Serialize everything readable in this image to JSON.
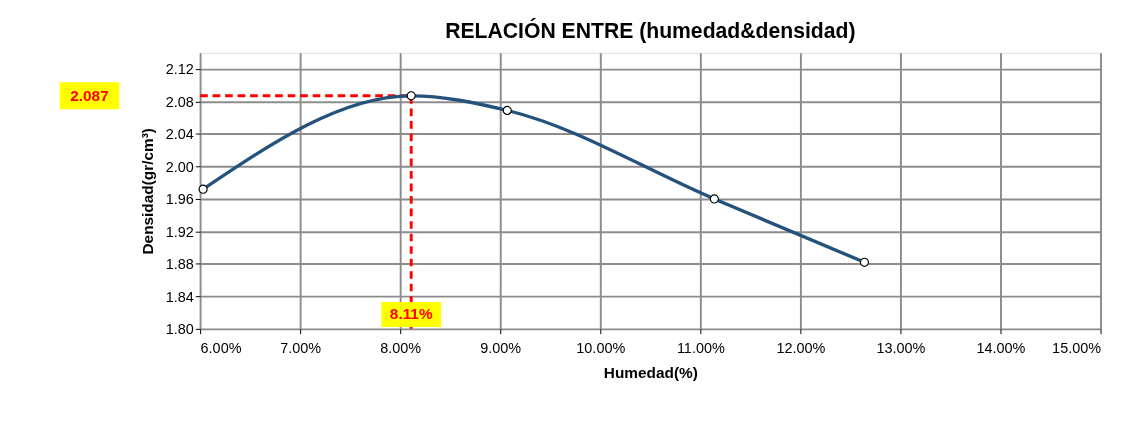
{
  "chart_data": {
    "type": "line",
    "title": "RELACIÓN ENTRE (humedad&densidad)",
    "xlabel": "Humedad(%)",
    "ylabel": "Densidad(gr/cm³)",
    "x": [
      6.03,
      8.11,
      9.07,
      11.14,
      12.64
    ],
    "series": [
      {
        "color": "#24527a",
        "values": [
          1.972,
          2.087,
          2.069,
          1.96,
          1.882
        ]
      }
    ],
    "marker": "circle",
    "line_style": "solid",
    "grid": true,
    "xlim": [
      6,
      15
    ],
    "xticks": [
      {
        "value": 6,
        "label": "6.00%"
      },
      {
        "value": 7,
        "label": "7.00%"
      },
      {
        "value": 8,
        "label": "8.00%"
      },
      {
        "value": 9,
        "label": "9.00%"
      },
      {
        "value": 10,
        "label": "10.00%"
      },
      {
        "value": 11,
        "label": "11.00%"
      },
      {
        "value": 12,
        "label": "12.00%"
      },
      {
        "value": 13,
        "label": "13.00%"
      },
      {
        "value": 14,
        "label": "14.00%"
      },
      {
        "value": 15,
        "label": "15.00%"
      }
    ],
    "ylim": [
      1.8,
      2.14
    ],
    "yticks": [
      {
        "value": 1.8,
        "label": "1.80"
      },
      {
        "value": 1.84,
        "label": "1.84"
      },
      {
        "value": 1.88,
        "label": "1.88"
      },
      {
        "value": 1.92,
        "label": "1.92"
      },
      {
        "value": 1.96,
        "label": "1.96"
      },
      {
        "value": 2.0,
        "label": "2.00"
      },
      {
        "value": 2.04,
        "label": "2.04"
      },
      {
        "value": 2.08,
        "label": "2.08"
      },
      {
        "value": 2.12,
        "label": "2.12"
      }
    ],
    "ref_lines": [
      {
        "axis": "y",
        "value": 2.087,
        "label": "2.087",
        "color": "#ff0000",
        "line_style": "dashed"
      },
      {
        "axis": "x",
        "value": 8.11,
        "label": "8.11%",
        "color": "#ff0000",
        "line_style": "dashed"
      }
    ]
  }
}
